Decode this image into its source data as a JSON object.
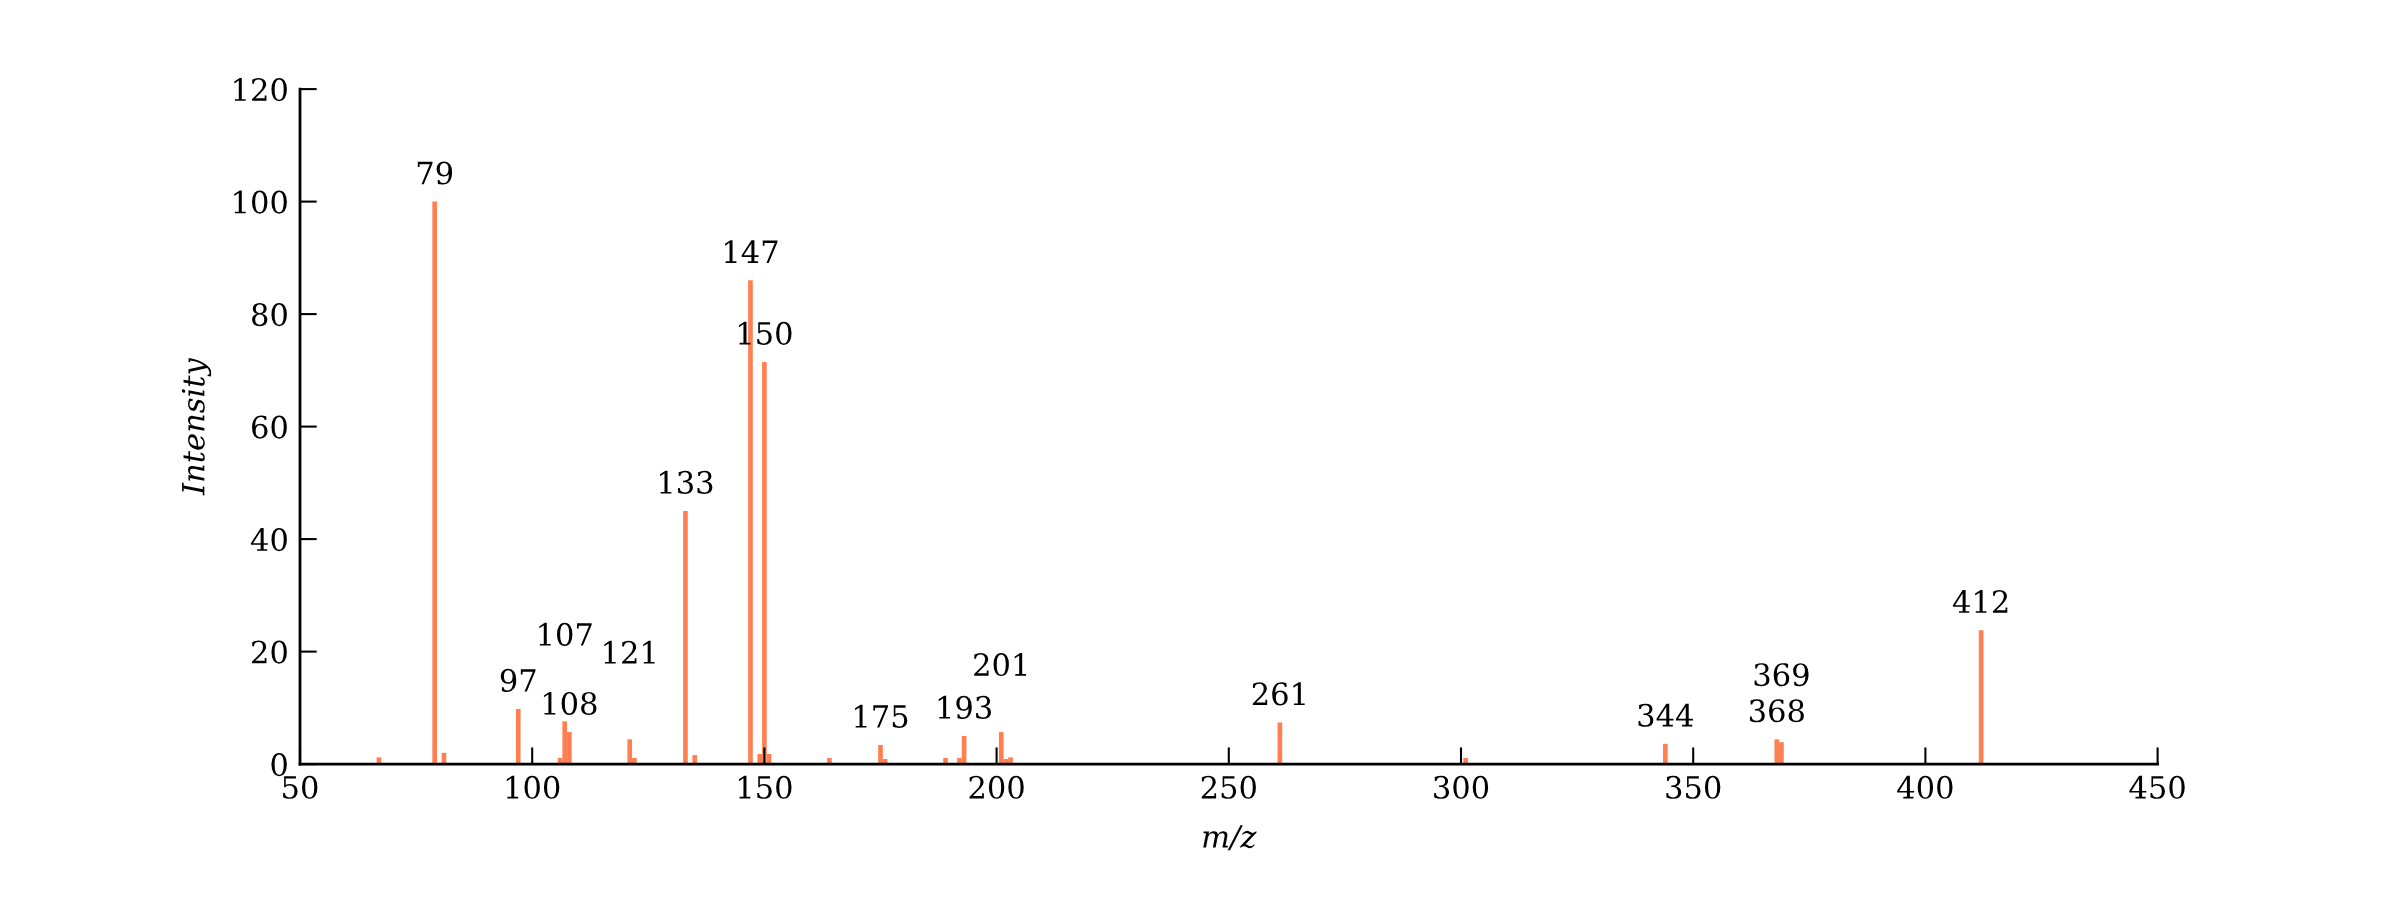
{
  "chart_data": {
    "type": "bar",
    "xlabel": "m/z",
    "ylabel": "Intensity",
    "x": [
      67,
      79,
      81,
      97,
      106,
      107,
      108,
      121,
      122,
      133,
      135,
      147,
      149,
      150,
      151,
      164,
      175,
      176,
      189,
      192,
      193,
      201,
      202,
      203,
      261,
      301,
      344,
      368,
      369,
      412
    ],
    "values": [
      1.2,
      100,
      2.0,
      9.8,
      1.1,
      7.6,
      5.7,
      4.4,
      1.1,
      45,
      1.6,
      86,
      1.8,
      71.5,
      1.8,
      1.1,
      3.4,
      0.9,
      1.1,
      1.1,
      5.0,
      5.7,
      0.9,
      1.2,
      7.4,
      1.1,
      3.6,
      4.4,
      3.9,
      23.8
    ],
    "color": "#ff7f50",
    "xlim": [
      50,
      450
    ],
    "xticks": [
      50,
      100,
      150,
      200,
      250,
      300,
      350,
      400,
      450
    ],
    "ylim": [
      0,
      120
    ],
    "yticks": [
      0,
      20,
      40,
      60,
      80,
      100,
      120
    ],
    "annotations": [
      {
        "text": "79",
        "x": 79,
        "y": 100
      },
      {
        "text": "97",
        "x": 97,
        "y": 9.8
      },
      {
        "text": "107",
        "x": 107,
        "y": 7.6
      },
      {
        "text": "108",
        "x": 108,
        "y": 5.7
      },
      {
        "text": "121",
        "x": 121,
        "y": 4.4
      },
      {
        "text": "133",
        "x": 133,
        "y": 45
      },
      {
        "text": "147",
        "x": 147,
        "y": 86
      },
      {
        "text": "150",
        "x": 150,
        "y": 71.5
      },
      {
        "text": "175",
        "x": 175,
        "y": 3.4
      },
      {
        "text": "193",
        "x": 193,
        "y": 5.0
      },
      {
        "text": "201",
        "x": 201,
        "y": 5.7
      },
      {
        "text": "261",
        "x": 261,
        "y": 7.4
      },
      {
        "text": "344",
        "x": 344,
        "y": 3.6
      },
      {
        "text": "368",
        "x": 368,
        "y": 4.4
      },
      {
        "text": "369",
        "x": 369,
        "y": 3.9
      },
      {
        "text": "412",
        "x": 412,
        "y": 23.8
      }
    ]
  }
}
